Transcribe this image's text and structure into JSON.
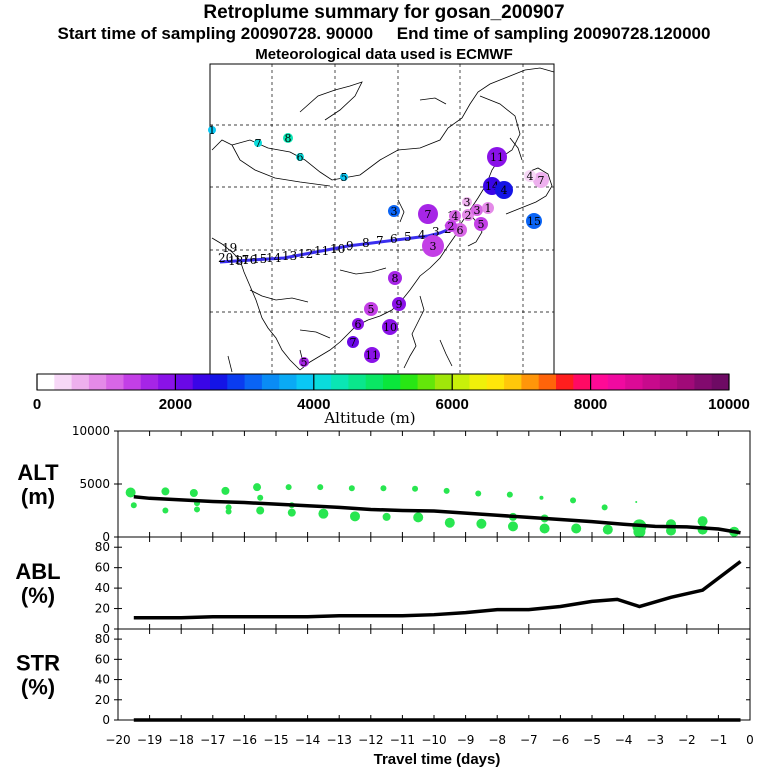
{
  "header": {
    "title": "Retroplume summary for gosan_200907",
    "sampling": "Start time of sampling 20090728. 90000     End time of sampling 20090728.120000",
    "met": "Meteorological data used is ECMWF"
  },
  "colorbar": {
    "label": "Altitude (m)",
    "ticks": [
      "0",
      "2000",
      "4000",
      "6000",
      "8000",
      "10000"
    ],
    "colors": [
      "#ffffff",
      "#f7d8f7",
      "#eeb0ee",
      "#e48ae8",
      "#d866e6",
      "#c33fe6",
      "#a625e6",
      "#8a12e8",
      "#6a08e6",
      "#3a05e6",
      "#1414e6",
      "#0a3cf0",
      "#0a64f5",
      "#0a8cf5",
      "#0aaaf5",
      "#0ac8f5",
      "#0adcdc",
      "#0ae6b4",
      "#0ae68c",
      "#0ae664",
      "#0ae63c",
      "#28e614",
      "#64e60a",
      "#a0e60a",
      "#c8f00a",
      "#f0f00a",
      "#ffe60a",
      "#ffc80a",
      "#ff960a",
      "#ff640a",
      "#ff1e1e",
      "#ff0a64",
      "#ff0a96",
      "#f00aa0",
      "#dc0a96",
      "#c80a8c",
      "#b40a82",
      "#a00a78",
      "#820a6e",
      "#6e0a64"
    ]
  },
  "map": {
    "trajectory_labels": [
      "1",
      "2",
      "3",
      "4",
      "5",
      "6",
      "7",
      "8",
      "9",
      "10",
      "11",
      "12",
      "13",
      "14",
      "15",
      "16",
      "17",
      "18",
      "19",
      "20"
    ],
    "cluster_numbers": [
      "1",
      "2",
      "3",
      "4",
      "5",
      "6",
      "7",
      "8",
      "9",
      "10",
      "11",
      "12",
      "13",
      "14",
      "15",
      "16",
      "17",
      "18",
      "19",
      "20"
    ]
  },
  "chart_data": [
    {
      "type": "scatter",
      "name": "ALT",
      "ylabel": "ALT\n(m)",
      "ylabel_line1": "ALT",
      "ylabel_line2": "(m)",
      "ylim": [
        0,
        10000
      ],
      "yticks": [
        "0",
        "5000",
        "10000"
      ],
      "xlim": [
        -20,
        0
      ],
      "line": {
        "x": [
          -19.5,
          -19,
          -18,
          -17,
          -16,
          -15,
          -14,
          -13,
          -12,
          -11,
          -10,
          -9,
          -8,
          -7,
          -6,
          -5,
          -4,
          -3,
          -2,
          -1,
          -0.3
        ],
        "y": [
          3800,
          3650,
          3500,
          3350,
          3250,
          3100,
          2950,
          2800,
          2600,
          2500,
          2450,
          2250,
          2050,
          1850,
          1650,
          1450,
          1200,
          1000,
          950,
          750,
          400
        ]
      },
      "points": [
        {
          "x": -19.6,
          "y": 4200,
          "s": 5
        },
        {
          "x": -19.5,
          "y": 3000,
          "s": 3
        },
        {
          "x": -18.5,
          "y": 4300,
          "s": 4
        },
        {
          "x": -18.5,
          "y": 2500,
          "s": 3
        },
        {
          "x": -17.6,
          "y": 4150,
          "s": 4
        },
        {
          "x": -17.5,
          "y": 3200,
          "s": 3
        },
        {
          "x": -17.5,
          "y": 2600,
          "s": 3
        },
        {
          "x": -16.6,
          "y": 4350,
          "s": 4
        },
        {
          "x": -16.5,
          "y": 2800,
          "s": 3
        },
        {
          "x": -16.5,
          "y": 2400,
          "s": 3
        },
        {
          "x": -15.6,
          "y": 4700,
          "s": 4
        },
        {
          "x": -15.5,
          "y": 3700,
          "s": 3
        },
        {
          "x": -15.5,
          "y": 2500,
          "s": 4
        },
        {
          "x": -14.6,
          "y": 4700,
          "s": 3
        },
        {
          "x": -14.5,
          "y": 3000,
          "s": 3
        },
        {
          "x": -14.5,
          "y": 2300,
          "s": 4
        },
        {
          "x": -13.6,
          "y": 4700,
          "s": 3
        },
        {
          "x": -13.5,
          "y": 2200,
          "s": 5
        },
        {
          "x": -12.6,
          "y": 4600,
          "s": 3
        },
        {
          "x": -12.5,
          "y": 1950,
          "s": 5
        },
        {
          "x": -11.6,
          "y": 4600,
          "s": 3
        },
        {
          "x": -11.5,
          "y": 1900,
          "s": 4
        },
        {
          "x": -10.6,
          "y": 4550,
          "s": 3
        },
        {
          "x": -10.5,
          "y": 1850,
          "s": 5
        },
        {
          "x": -9.6,
          "y": 4350,
          "s": 3
        },
        {
          "x": -9.5,
          "y": 1350,
          "s": 5
        },
        {
          "x": -8.6,
          "y": 4100,
          "s": 3
        },
        {
          "x": -8.5,
          "y": 1250,
          "s": 5
        },
        {
          "x": -7.6,
          "y": 4000,
          "s": 3
        },
        {
          "x": -7.5,
          "y": 1900,
          "s": 4
        },
        {
          "x": -7.5,
          "y": 1000,
          "s": 5
        },
        {
          "x": -6.6,
          "y": 3700,
          "s": 2
        },
        {
          "x": -6.5,
          "y": 1750,
          "s": 4
        },
        {
          "x": -6.5,
          "y": 800,
          "s": 5
        },
        {
          "x": -5.6,
          "y": 3450,
          "s": 3
        },
        {
          "x": -5.5,
          "y": 800,
          "s": 5
        },
        {
          "x": -4.6,
          "y": 2800,
          "s": 3
        },
        {
          "x": -4.5,
          "y": 700,
          "s": 5
        },
        {
          "x": -3.6,
          "y": 3300,
          "s": 1
        },
        {
          "x": -3.5,
          "y": 1000,
          "s": 7
        },
        {
          "x": -3.5,
          "y": 500,
          "s": 6
        },
        {
          "x": -2.5,
          "y": 1200,
          "s": 5
        },
        {
          "x": -2.5,
          "y": 600,
          "s": 5
        },
        {
          "x": -1.5,
          "y": 1500,
          "s": 5
        },
        {
          "x": -1.5,
          "y": 700,
          "s": 5
        },
        {
          "x": -0.5,
          "y": 500,
          "s": 5
        }
      ],
      "point_color": "#28e650"
    },
    {
      "type": "line",
      "name": "ABL",
      "ylabel_line1": "ABL",
      "ylabel_line2": "(%)",
      "ylim": [
        0,
        90
      ],
      "yticks": [
        "0",
        "20",
        "40",
        "60",
        "80"
      ],
      "xlim": [
        -20,
        0
      ],
      "x": [
        -19.5,
        -18,
        -17,
        -16,
        -15,
        -14,
        -13,
        -12,
        -11,
        -10,
        -9,
        -8,
        -7,
        -6,
        -5,
        -4.2,
        -3.5,
        -2.5,
        -1.5,
        -0.3
      ],
      "y": [
        11,
        11,
        12,
        12,
        12,
        12,
        13,
        13,
        13,
        14,
        16,
        19,
        19,
        22,
        27,
        29,
        22,
        31,
        38,
        66
      ]
    },
    {
      "type": "line",
      "name": "STR",
      "ylabel_line1": "STR",
      "ylabel_line2": "(%)",
      "ylim": [
        0,
        90
      ],
      "yticks": [
        "0",
        "20",
        "40",
        "60",
        "80"
      ],
      "xlim": [
        -20,
        0
      ],
      "x": [
        -19.5,
        -0.3
      ],
      "y": [
        0,
        0
      ]
    }
  ],
  "xaxis": {
    "label": "Travel time (days)",
    "ticks": [
      "−20",
      "−19",
      "−18",
      "−17",
      "−16",
      "−15",
      "−14",
      "−13",
      "−12",
      "−11",
      "−10",
      "−9",
      "−8",
      "−7",
      "−6",
      "−5",
      "−4",
      "−3",
      "−2",
      "−1",
      "0"
    ]
  }
}
